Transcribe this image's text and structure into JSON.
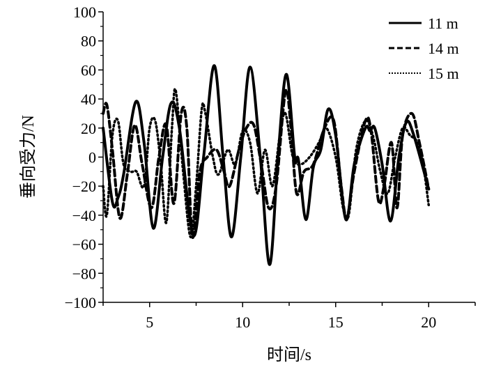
{
  "chart_data": {
    "type": "line",
    "xlabel": "时间/s",
    "ylabel": "垂向受力/N",
    "xlim": [
      2.5,
      22.5
    ],
    "ylim": [
      -100,
      100
    ],
    "xticks": [
      5,
      10,
      15,
      20
    ],
    "yticks": [
      -100,
      -80,
      -60,
      -40,
      -20,
      0,
      20,
      40,
      60,
      80,
      100
    ],
    "grid": false,
    "legend_position": "top-right",
    "series": [
      {
        "name": "11 m",
        "style": "solid",
        "color": "#000000",
        "points": [
          [
            2.5,
            20
          ],
          [
            3.0,
            -31
          ],
          [
            3.3,
            -28
          ],
          [
            3.6,
            -12
          ],
          [
            4.25,
            38
          ],
          [
            4.7,
            10
          ],
          [
            5.2,
            -49
          ],
          [
            5.7,
            0
          ],
          [
            6.15,
            37
          ],
          [
            6.6,
            20
          ],
          [
            7.35,
            -54
          ],
          [
            7.9,
            0
          ],
          [
            8.47,
            63
          ],
          [
            8.95,
            0
          ],
          [
            9.4,
            -55
          ],
          [
            9.9,
            0
          ],
          [
            10.4,
            62
          ],
          [
            10.95,
            0
          ],
          [
            11.45,
            -74
          ],
          [
            11.9,
            0
          ],
          [
            12.35,
            57
          ],
          [
            12.8,
            0
          ],
          [
            13.0,
            -2
          ],
          [
            13.4,
            -43
          ],
          [
            13.8,
            -7
          ],
          [
            14.2,
            5
          ],
          [
            14.6,
            33
          ],
          [
            15.0,
            15
          ],
          [
            15.55,
            -43
          ],
          [
            16.0,
            -5
          ],
          [
            16.6,
            20
          ],
          [
            16.85,
            18
          ],
          [
            17.1,
            20
          ],
          [
            17.5,
            -5
          ],
          [
            17.95,
            -44
          ],
          [
            18.4,
            0
          ],
          [
            18.8,
            24
          ],
          [
            19.2,
            15
          ],
          [
            20,
            -22
          ]
        ]
      },
      {
        "name": "14 m",
        "style": "dashed",
        "color": "#000000",
        "points": [
          [
            2.5,
            30
          ],
          [
            2.7,
            36
          ],
          [
            3.0,
            5
          ],
          [
            3.4,
            -42
          ],
          [
            3.8,
            -12
          ],
          [
            4.2,
            22
          ],
          [
            4.6,
            -5
          ],
          [
            5.1,
            -35
          ],
          [
            5.5,
            0
          ],
          [
            5.9,
            22
          ],
          [
            6.3,
            -32
          ],
          [
            6.7,
            30
          ],
          [
            7.0,
            20
          ],
          [
            7.3,
            -55
          ],
          [
            7.7,
            -10
          ],
          [
            8.1,
            0
          ],
          [
            8.6,
            5
          ],
          [
            9.0,
            -10
          ],
          [
            9.3,
            -20
          ],
          [
            9.8,
            5
          ],
          [
            10.2,
            20
          ],
          [
            10.6,
            22
          ],
          [
            11.0,
            -5
          ],
          [
            11.4,
            -35
          ],
          [
            11.8,
            -20
          ],
          [
            12.3,
            45
          ],
          [
            12.6,
            20
          ],
          [
            12.9,
            -25
          ],
          [
            13.3,
            -10
          ],
          [
            13.8,
            -5
          ],
          [
            14.4,
            20
          ],
          [
            14.9,
            25
          ],
          [
            15.3,
            -20
          ],
          [
            15.6,
            -42
          ],
          [
            16.0,
            -10
          ],
          [
            16.6,
            25
          ],
          [
            16.9,
            18
          ],
          [
            17.3,
            -30
          ],
          [
            17.6,
            -20
          ],
          [
            18.0,
            10
          ],
          [
            18.3,
            -35
          ],
          [
            18.6,
            15
          ],
          [
            19.1,
            30
          ],
          [
            19.5,
            10
          ],
          [
            20,
            -22
          ]
        ]
      },
      {
        "name": "15 m",
        "style": "dotted",
        "color": "#000000",
        "points": [
          [
            2.5,
            -20
          ],
          [
            2.7,
            -40
          ],
          [
            3.0,
            15
          ],
          [
            3.3,
            25
          ],
          [
            3.6,
            -5
          ],
          [
            4.0,
            -10
          ],
          [
            4.3,
            -10
          ],
          [
            4.7,
            -20
          ],
          [
            5.0,
            20
          ],
          [
            5.3,
            25
          ],
          [
            5.6,
            -5
          ],
          [
            5.9,
            -45
          ],
          [
            6.2,
            20
          ],
          [
            6.4,
            46
          ],
          [
            6.8,
            -10
          ],
          [
            7.2,
            -55
          ],
          [
            7.5,
            -20
          ],
          [
            7.8,
            33
          ],
          [
            8.0,
            30
          ],
          [
            8.4,
            0
          ],
          [
            8.7,
            -12
          ],
          [
            9.2,
            5
          ],
          [
            9.6,
            -5
          ],
          [
            10.0,
            18
          ],
          [
            10.4,
            10
          ],
          [
            10.8,
            -25
          ],
          [
            11.2,
            5
          ],
          [
            11.6,
            -20
          ],
          [
            12.0,
            15
          ],
          [
            12.3,
            30
          ],
          [
            12.7,
            0
          ],
          [
            13.1,
            -5
          ],
          [
            13.6,
            0
          ],
          [
            14.1,
            10
          ],
          [
            14.5,
            20
          ],
          [
            15.0,
            0
          ],
          [
            15.4,
            -35
          ],
          [
            15.7,
            -40
          ],
          [
            16.1,
            5
          ],
          [
            16.6,
            25
          ],
          [
            17.0,
            15
          ],
          [
            17.4,
            -10
          ],
          [
            17.8,
            -25
          ],
          [
            18.2,
            0
          ],
          [
            18.6,
            20
          ],
          [
            19.0,
            15
          ],
          [
            19.4,
            10
          ],
          [
            19.7,
            -5
          ],
          [
            20,
            -33
          ]
        ]
      }
    ]
  }
}
